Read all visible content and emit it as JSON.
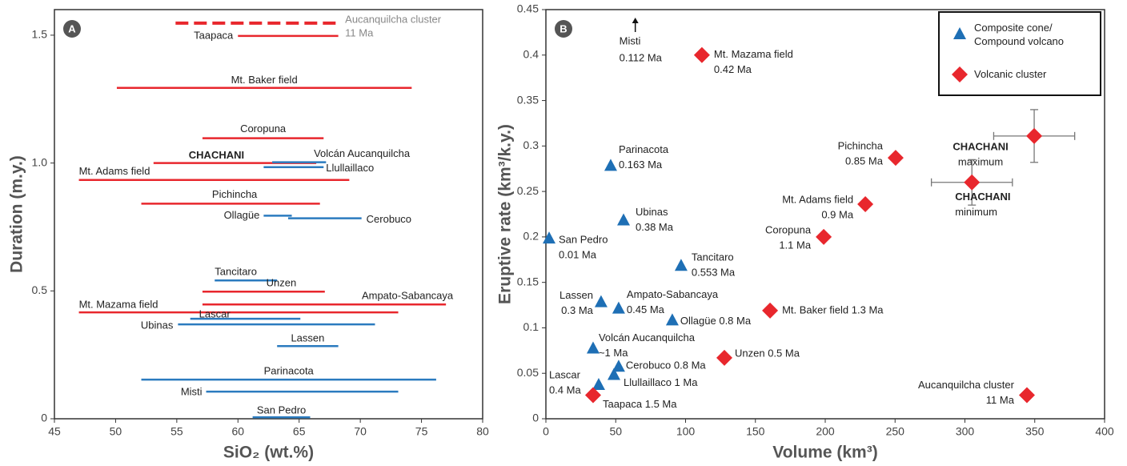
{
  "chart_data": [
    {
      "type": "range",
      "panel": "A",
      "xlabel": "SiO₂ (wt.%)",
      "ylabel": "Duration (m.y.)",
      "xlim": [
        45,
        80
      ],
      "ylim": [
        0,
        1.6
      ],
      "xticks": [
        45,
        50,
        55,
        60,
        65,
        70,
        75,
        80
      ],
      "yticks": [
        0,
        0.5,
        {
          "value": 1,
          "label": "1.0"
        },
        1.5
      ],
      "segments": [
        {
          "label": [
            "Aucanquilcha cluster",
            "11 Ma"
          ],
          "color": "#e8272d",
          "dashed": true,
          "y": 1.547,
          "x": [
            54.9,
            68.3
          ]
        },
        {
          "label": [
            "Taapaca"
          ],
          "color": "#e8272d",
          "y": 1.497,
          "x": [
            60.0,
            68.2
          ]
        },
        {
          "label": [
            "Mt. Baker field"
          ],
          "color": "#e8272d",
          "y": 1.294,
          "x": [
            50.1,
            74.2
          ]
        },
        {
          "label": [
            "Coropuna"
          ],
          "color": "#e8272d",
          "y": 1.097,
          "x": [
            57.1,
            67.0
          ]
        },
        {
          "label": [
            "CHACHANI"
          ],
          "color": "#e8272d",
          "bold": true,
          "y": 1.0,
          "x": [
            53.1,
            66.4
          ]
        },
        {
          "label": [
            "Volcán Aucanquilcha"
          ],
          "color": "#2b7bbf",
          "y": 1.003,
          "x": [
            62.8,
            67.2
          ]
        },
        {
          "label": [
            "Llullaillaco"
          ],
          "color": "#2b7bbf",
          "y": 0.984,
          "x": [
            62.1,
            67.0
          ]
        },
        {
          "label": [
            "Mt. Adams field"
          ],
          "color": "#e8272d",
          "y": 0.934,
          "x": [
            47.0,
            69.1
          ]
        },
        {
          "label": [
            "Pichincha"
          ],
          "color": "#e8272d",
          "y": 0.841,
          "x": [
            52.1,
            66.7
          ]
        },
        {
          "label": [
            "Ollagüe"
          ],
          "color": "#2b7bbf",
          "y": 0.794,
          "x": [
            62.1,
            64.4
          ]
        },
        {
          "label": [
            "Cerobuco"
          ],
          "color": "#2b7bbf",
          "y": 0.784,
          "x": [
            64.1,
            70.1
          ]
        },
        {
          "label": [
            "Tancitaro"
          ],
          "color": "#2b7bbf",
          "y": 0.541,
          "x": [
            58.1,
            63.2
          ]
        },
        {
          "label": [
            "Unzen"
          ],
          "color": "#e8272d",
          "y": 0.497,
          "x": [
            57.1,
            67.1
          ]
        },
        {
          "label": [
            "Ampato-Sabancaya"
          ],
          "color": "#e8272d",
          "y": 0.447,
          "x": [
            57.1,
            77.0
          ]
        },
        {
          "label": [
            "Mt. Mazama field"
          ],
          "color": "#e8272d",
          "y": 0.416,
          "x": [
            47.0,
            73.1
          ]
        },
        {
          "label": [
            "Lascar"
          ],
          "color": "#2b7bbf",
          "y": 0.391,
          "x": [
            56.1,
            65.1
          ]
        },
        {
          "label": [
            "Ubinas"
          ],
          "color": "#2b7bbf",
          "y": 0.369,
          "x": [
            55.1,
            71.2
          ]
        },
        {
          "label": [
            "Lassen"
          ],
          "color": "#2b7bbf",
          "y": 0.284,
          "x": [
            63.2,
            68.2
          ]
        },
        {
          "label": [
            "Parinacota"
          ],
          "color": "#2b7bbf",
          "y": 0.153,
          "x": [
            52.1,
            76.2
          ]
        },
        {
          "label": [
            "Misti"
          ],
          "color": "#2b7bbf",
          "y": 0.106,
          "x": [
            57.4,
            73.1
          ]
        },
        {
          "label": [
            "San Pedro"
          ],
          "color": "#2b7bbf",
          "y": 0.006,
          "x": [
            61.2,
            65.9
          ]
        }
      ]
    },
    {
      "type": "scatter",
      "panel": "B",
      "xlabel": "Volume (km³)",
      "ylabel": "Eruptive rate (km³/k.y.)",
      "xlim": [
        0,
        400
      ],
      "ylim": [
        0,
        0.45
      ],
      "xticks": [
        0,
        50,
        100,
        150,
        200,
        250,
        300,
        350,
        400
      ],
      "yticks": [
        0,
        0.05,
        0.1,
        0.15,
        0.2,
        0.25,
        0.3,
        0.35,
        0.4,
        0.45
      ],
      "legend": "upper right",
      "series": [
        {
          "name": "Composite cone/ Compound volcano",
          "color": "#1e6fb5",
          "marker": "triangle",
          "x": [
            46.4,
            55.6,
            2.3,
            96.8,
            39.5,
            52.1,
            90.5,
            33.8,
            52.1,
            48.7,
            37.8
          ],
          "values": [
            0.278,
            0.218,
            0.198,
            0.168,
            0.128,
            0.121,
            0.108,
            0.077,
            0.057,
            0.048,
            0.037
          ],
          "labels": [
            [
              "Parinacota",
              "0.163 Ma"
            ],
            [
              "Ubinas",
              "0.38 Ma"
            ],
            [
              "San Pedro",
              "0.01 Ma"
            ],
            [
              "Tancitaro",
              "0.553 Ma"
            ],
            [
              "Lassen",
              "0.3 Ma"
            ],
            [
              "Ampato-Sabancaya",
              "0.45 Ma"
            ],
            [
              "Ollagüe 0.8 Ma"
            ],
            [
              "Volcán Aucanquilcha",
              "~1 Ma"
            ],
            [
              "Cerobuco 0.8 Ma"
            ],
            [
              "Llullaillaco 1 Ma"
            ],
            [
              "Lascar",
              "0.4 Ma"
            ]
          ]
        },
        {
          "name": "Volcanic cluster",
          "color": "#e8272d",
          "marker": "diamond",
          "x": [
            111.7,
            250.4,
            349.6,
            305,
            228.7,
            198.9,
            160.5,
            127.8,
            33.8,
            344.4
          ],
          "values": [
            0.4,
            0.287,
            0.311,
            0.26,
            0.236,
            0.2,
            0.119,
            0.067,
            0.026,
            0.026
          ],
          "xerr": [
            null,
            null,
            29,
            29,
            null,
            null,
            null,
            null,
            null,
            null
          ],
          "yerr": [
            null,
            null,
            0.029,
            0.025,
            null,
            null,
            null,
            null,
            null,
            null
          ],
          "labels": [
            [
              "Mt. Mazama field",
              "0.42 Ma"
            ],
            [
              "Pichincha",
              "0.85 Ma"
            ],
            [
              "CHACHANI",
              "maximum"
            ],
            [
              "CHACHANI",
              "minimum"
            ],
            [
              "Mt. Adams field",
              "0.9 Ma"
            ],
            [
              "Coropuna",
              "1.1 Ma"
            ],
            [
              "Mt. Baker field 1.3 Ma"
            ],
            [
              "Unzen 0.5 Ma"
            ],
            [
              "Taapaca 1.5 Ma"
            ],
            [
              "Aucanquilcha cluster",
              "11 Ma"
            ]
          ]
        }
      ],
      "offscale": [
        {
          "x": 64,
          "label": [
            "Misti",
            "0.112 Ma"
          ]
        }
      ]
    }
  ]
}
